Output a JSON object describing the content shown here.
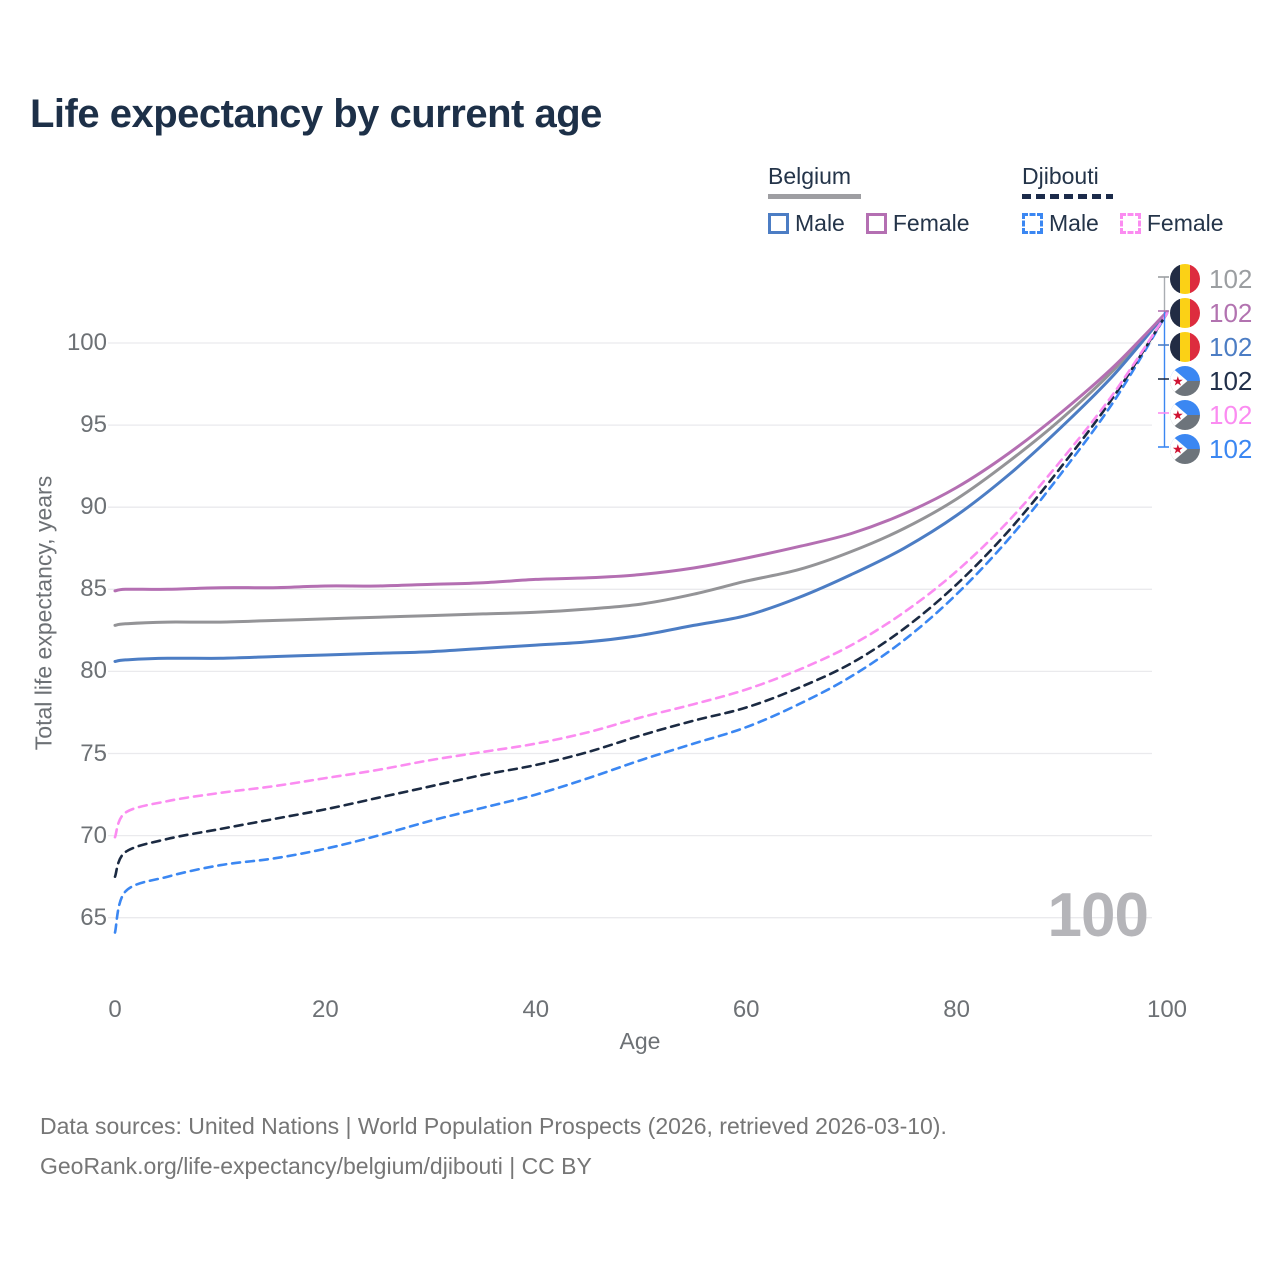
{
  "title": "Life expectancy by current age",
  "legend": {
    "groups": [
      {
        "name": "Belgium",
        "style": "solid",
        "items": [
          {
            "label": "Male"
          },
          {
            "label": "Female"
          }
        ]
      },
      {
        "name": "Djibouti",
        "style": "dashed",
        "items": [
          {
            "label": "Male"
          },
          {
            "label": "Female"
          }
        ]
      }
    ]
  },
  "watermark": "100",
  "footer": {
    "line1": "Data sources: United Nations | World Population Prospects (2026, retrieved 2026-03-10).",
    "line2": "GeoRank.org/life-expectancy/belgium/djibouti | CC BY"
  },
  "colors": {
    "title_text": "#1d3048",
    "axis_text": "#6d7175",
    "grid": "#eaeaed",
    "watermark": "#b5b5b9",
    "footer_text": "#767676"
  },
  "chart_data": {
    "type": "line",
    "title": "Life expectancy by current age",
    "xlabel": "Age",
    "ylabel": "Total life expectancy, years",
    "xlim": [
      0,
      100
    ],
    "ylim": [
      63,
      103
    ],
    "x_ticks": [
      0,
      20,
      40,
      60,
      80,
      100
    ],
    "y_ticks": [
      65,
      70,
      75,
      80,
      85,
      90,
      95,
      100
    ],
    "grid": "horizontal",
    "legend_position": "top-right",
    "x": [
      0,
      1,
      5,
      10,
      15,
      20,
      25,
      30,
      35,
      40,
      45,
      50,
      55,
      60,
      65,
      70,
      75,
      80,
      85,
      90,
      95,
      100
    ],
    "series": [
      {
        "name": "Belgium Both sexes",
        "country": "Belgium",
        "sex": "both",
        "flag": "belgium",
        "color": "#949497",
        "dash": "solid",
        "end_value": "102",
        "end_label_color": "#9b9ea1",
        "values": [
          82.8,
          82.9,
          83.0,
          83.0,
          83.1,
          83.2,
          83.3,
          83.4,
          83.5,
          83.6,
          83.8,
          84.1,
          84.7,
          85.5,
          86.2,
          87.3,
          88.7,
          90.5,
          92.8,
          95.4,
          98.4,
          101.9
        ]
      },
      {
        "name": "Belgium Female",
        "country": "Belgium",
        "sex": "female",
        "flag": "belgium",
        "color": "#b46fb2",
        "dash": "solid",
        "end_value": "102",
        "end_label_color": "#b273b0",
        "values": [
          84.9,
          85.0,
          85.0,
          85.1,
          85.1,
          85.2,
          85.2,
          85.3,
          85.4,
          85.6,
          85.7,
          85.9,
          86.3,
          86.9,
          87.6,
          88.4,
          89.6,
          91.2,
          93.3,
          95.8,
          98.6,
          101.9
        ]
      },
      {
        "name": "Belgium Male",
        "country": "Belgium",
        "sex": "male",
        "flag": "belgium",
        "color": "#4c7dc4",
        "dash": "solid",
        "end_value": "102",
        "end_label_color": "#4c7dc4",
        "values": [
          80.6,
          80.7,
          80.8,
          80.8,
          80.9,
          81.0,
          81.1,
          81.2,
          81.4,
          81.6,
          81.8,
          82.2,
          82.8,
          83.4,
          84.5,
          85.9,
          87.5,
          89.5,
          92.0,
          94.9,
          98.1,
          101.9
        ]
      },
      {
        "name": "Djibouti Both sexes",
        "country": "Djibouti",
        "sex": "both",
        "flag": "djibouti",
        "color": "#1b2a42",
        "dash": "dashed",
        "end_value": "102",
        "end_label_color": "#22304a",
        "values": [
          67.5,
          69.0,
          69.8,
          70.4,
          71.0,
          71.6,
          72.3,
          73.0,
          73.7,
          74.3,
          75.1,
          76.1,
          77.0,
          77.8,
          79.0,
          80.5,
          82.6,
          85.3,
          88.6,
          92.5,
          96.8,
          101.8
        ]
      },
      {
        "name": "Djibouti Female",
        "country": "Djibouti",
        "sex": "female",
        "flag": "djibouti",
        "color": "#fb8cf1",
        "dash": "dashed",
        "end_value": "102",
        "end_label_color": "#fb8cf1",
        "values": [
          69.9,
          71.4,
          72.1,
          72.6,
          73.0,
          73.5,
          74.0,
          74.6,
          75.1,
          75.6,
          76.3,
          77.2,
          78.0,
          78.9,
          80.1,
          81.6,
          83.6,
          86.1,
          89.2,
          92.9,
          97.0,
          101.8
        ]
      },
      {
        "name": "Djibouti Male",
        "country": "Djibouti",
        "sex": "male",
        "flag": "djibouti",
        "color": "#3b87f2",
        "dash": "dashed",
        "end_value": "102",
        "end_label_color": "#3b87f2",
        "values": [
          64.1,
          66.6,
          67.5,
          68.2,
          68.6,
          69.2,
          70.0,
          70.9,
          71.7,
          72.5,
          73.5,
          74.6,
          75.6,
          76.6,
          78.0,
          79.7,
          81.9,
          84.7,
          88.1,
          92.1,
          96.5,
          101.8
        ]
      }
    ]
  }
}
